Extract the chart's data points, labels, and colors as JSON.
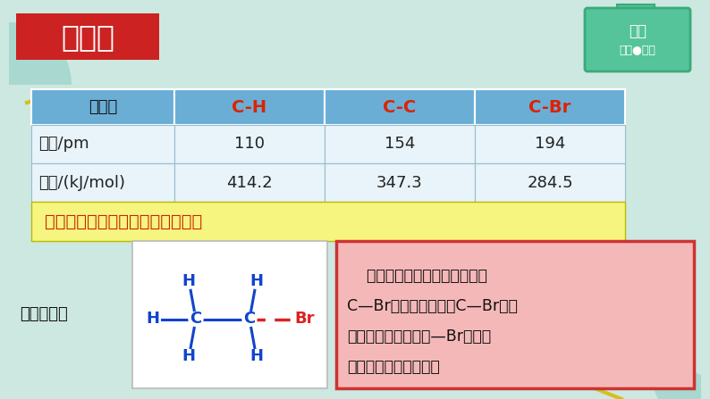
{
  "bg_color": "#cce8e0",
  "title_text": "溴乙烷",
  "title_bg": "#cc2222",
  "title_fg": "#ffffff",
  "header_bg": "#6aaed6",
  "header_fg": "#dd2200",
  "row_fg": "#222222",
  "row_bg": "#e8f4fa",
  "highlight_bg": "#f5f580",
  "highlight_fg": "#cc2200",
  "highlight_text": "通过上表，推测溴乙烷断键的位置",
  "table_headers": [
    "化学键",
    "C-H",
    "C-C",
    "C-Br"
  ],
  "table_row1": [
    "键长/pm",
    "110",
    "154",
    "194"
  ],
  "table_row2": [
    "键能/(kJ/mol)",
    "414.2",
    "347.3",
    "284.5"
  ],
  "bottom_left_label": "断键方式：",
  "bottom_right_line1": "    由于溴原子吸引电子能力强，",
  "bottom_right_line2": "C—Br键为强极性键，C—Br键易",
  "bottom_right_line3": "断裂；由于官能团（—Br）的作",
  "bottom_right_line4": "用，乙基可能被活化。",
  "bottom_right_bg": "#f5b8b8",
  "bottom_right_border": "#cc3333",
  "badge_bg": "#55c49a",
  "badge_text1": "教材",
  "badge_text2": "解读●拓展",
  "bond_color": "#1144cc",
  "dashed_color": "#dd2222",
  "mol_bg": "#ffffff"
}
